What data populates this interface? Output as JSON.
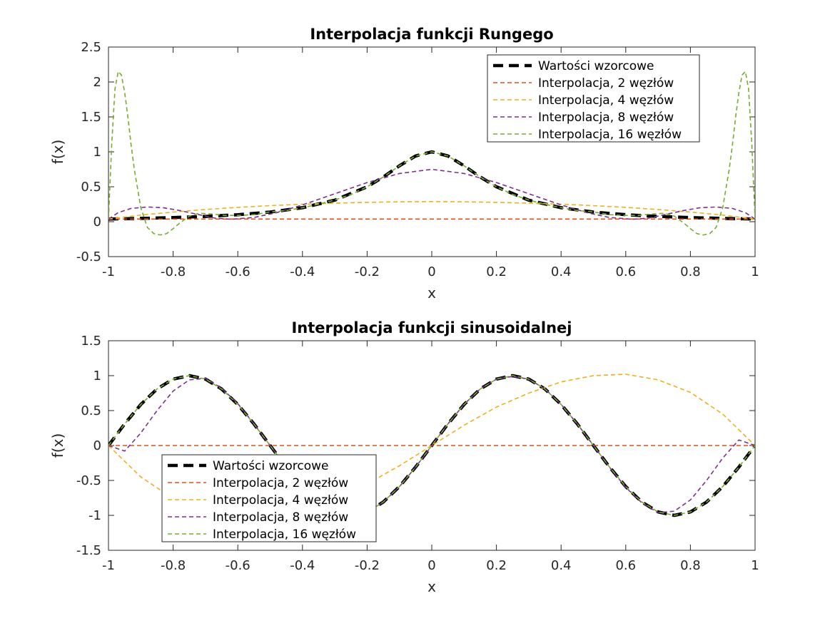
{
  "colors": {
    "reference": "#000000",
    "n2": "#D95319",
    "n4": "#EDB120",
    "n8": "#7E2F8E",
    "n16": "#77AC30",
    "axes": "#262626",
    "background": "#ffffff"
  },
  "chart_data": [
    {
      "type": "line",
      "title": "Interpolacja funkcji Rungego",
      "xlabel": "x",
      "ylabel": "f(x)",
      "xlim": [
        -1,
        1
      ],
      "ylim": [
        -0.5,
        2.5
      ],
      "xticks": [
        -1,
        -0.8,
        -0.6,
        -0.4,
        -0.2,
        0,
        0.2,
        0.4,
        0.6,
        0.8,
        1
      ],
      "xtick_labels": [
        "-1",
        "-0.8",
        "-0.6",
        "-0.4",
        "-0.2",
        "0",
        "0.2",
        "0.4",
        "0.6",
        "0.8",
        "1"
      ],
      "yticks": [
        -0.5,
        0,
        0.5,
        1,
        1.5,
        2,
        2.5
      ],
      "ytick_labels": [
        "-0.5",
        "0",
        "0.5",
        "1",
        "1.5",
        "2",
        "2.5"
      ],
      "grid": false,
      "legend_position": "top-right",
      "series": [
        {
          "name": "Wartości wzorcowe",
          "style": "reference",
          "x": [
            -1,
            -0.9,
            -0.8,
            -0.7,
            -0.6,
            -0.5,
            -0.4,
            -0.3,
            -0.2,
            -0.15,
            -0.1,
            -0.05,
            0,
            0.05,
            0.1,
            0.15,
            0.2,
            0.3,
            0.4,
            0.5,
            0.6,
            0.7,
            0.8,
            0.9,
            1
          ],
          "y": [
            0.038,
            0.047,
            0.059,
            0.075,
            0.1,
            0.138,
            0.2,
            0.308,
            0.5,
            0.64,
            0.8,
            0.941,
            1,
            0.941,
            0.8,
            0.64,
            0.5,
            0.308,
            0.2,
            0.138,
            0.1,
            0.075,
            0.059,
            0.047,
            0.038
          ]
        },
        {
          "name": "Interpolacja, 2 węzłów",
          "style": "n2",
          "x": [
            -1,
            1
          ],
          "y": [
            0.038,
            0.038
          ]
        },
        {
          "name": "Interpolacja, 4 węzłów",
          "style": "n4",
          "x": [
            -1,
            -0.9,
            -0.8,
            -0.7,
            -0.6,
            -0.5,
            -0.4,
            -0.3,
            -0.2,
            -0.1,
            0,
            0.1,
            0.2,
            0.3,
            0.4,
            0.5,
            0.6,
            0.7,
            0.8,
            0.9,
            1
          ],
          "y": [
            0.038,
            0.095,
            0.138,
            0.175,
            0.205,
            0.23,
            0.25,
            0.265,
            0.277,
            0.285,
            0.288,
            0.285,
            0.277,
            0.265,
            0.25,
            0.23,
            0.205,
            0.175,
            0.138,
            0.095,
            0.038
          ]
        },
        {
          "name": "Interpolacja, 8 węzłów",
          "style": "n8",
          "x": [
            -1,
            -0.97,
            -0.93,
            -0.88,
            -0.83,
            -0.78,
            -0.72,
            -0.67,
            -0.62,
            -0.55,
            -0.48,
            -0.4,
            -0.3,
            -0.2,
            -0.1,
            0,
            0.1,
            0.2,
            0.3,
            0.4,
            0.48,
            0.55,
            0.62,
            0.67,
            0.72,
            0.78,
            0.83,
            0.88,
            0.93,
            0.97,
            1
          ],
          "y": [
            0.038,
            0.13,
            0.19,
            0.21,
            0.2,
            0.16,
            0.1,
            0.05,
            0.035,
            0.06,
            0.13,
            0.24,
            0.4,
            0.56,
            0.69,
            0.75,
            0.69,
            0.56,
            0.4,
            0.24,
            0.13,
            0.06,
            0.035,
            0.05,
            0.1,
            0.16,
            0.2,
            0.21,
            0.19,
            0.13,
            0.038
          ]
        },
        {
          "name": "Interpolacja, 16 węzłów",
          "style": "n16",
          "x": [
            -1,
            -0.99,
            -0.98,
            -0.97,
            -0.96,
            -0.95,
            -0.94,
            -0.93,
            -0.92,
            -0.9,
            -0.88,
            -0.86,
            -0.84,
            -0.82,
            -0.8,
            -0.78,
            -0.75,
            -0.72,
            -0.68,
            -0.64,
            -0.6,
            -0.55,
            -0.5,
            -0.45,
            -0.4,
            -0.35,
            -0.3,
            -0.25,
            -0.2,
            -0.15,
            -0.1,
            -0.05,
            0,
            0.05,
            0.1,
            0.15,
            0.2,
            0.25,
            0.3,
            0.35,
            0.4,
            0.45,
            0.5,
            0.55,
            0.6,
            0.64,
            0.68,
            0.72,
            0.75,
            0.78,
            0.8,
            0.82,
            0.84,
            0.86,
            0.88,
            0.9,
            0.92,
            0.93,
            0.94,
            0.95,
            0.96,
            0.97,
            0.98,
            0.99,
            1
          ],
          "y": [
            0.038,
            1.1,
            1.9,
            2.15,
            2.1,
            1.85,
            1.5,
            1.1,
            0.75,
            0.2,
            -0.08,
            -0.17,
            -0.19,
            -0.17,
            -0.1,
            -0.02,
            0.08,
            0.12,
            0.11,
            0.09,
            0.09,
            0.1,
            0.14,
            0.16,
            0.2,
            0.25,
            0.31,
            0.39,
            0.5,
            0.64,
            0.8,
            0.94,
            1,
            0.94,
            0.8,
            0.64,
            0.5,
            0.39,
            0.31,
            0.25,
            0.2,
            0.16,
            0.14,
            0.1,
            0.09,
            0.09,
            0.11,
            0.12,
            0.08,
            -0.02,
            -0.1,
            -0.17,
            -0.19,
            -0.17,
            -0.08,
            0.2,
            0.75,
            1.1,
            1.5,
            1.85,
            2.1,
            2.15,
            1.9,
            1.1,
            0.038
          ]
        }
      ]
    },
    {
      "type": "line",
      "title": "Interpolacja funkcji sinusoidalnej",
      "xlabel": "x",
      "ylabel": "f(x)",
      "xlim": [
        -1,
        1
      ],
      "ylim": [
        -1.5,
        1.5
      ],
      "xticks": [
        -1,
        -0.8,
        -0.6,
        -0.4,
        -0.2,
        0,
        0.2,
        0.4,
        0.6,
        0.8,
        1
      ],
      "xtick_labels": [
        "-1",
        "-0.8",
        "-0.6",
        "-0.4",
        "-0.2",
        "0",
        "0.2",
        "0.4",
        "0.6",
        "0.8",
        "1"
      ],
      "yticks": [
        -1.5,
        -1,
        -0.5,
        0,
        0.5,
        1,
        1.5
      ],
      "ytick_labels": [
        "-1.5",
        "-1",
        "-0.5",
        "0",
        "0.5",
        "1",
        "1.5"
      ],
      "grid": false,
      "legend_position": "bottom-left",
      "series": [
        {
          "name": "Wartości wzorcowe",
          "style": "reference",
          "x": [
            -1,
            -0.95,
            -0.9,
            -0.85,
            -0.8,
            -0.75,
            -0.7,
            -0.65,
            -0.6,
            -0.55,
            -0.5,
            -0.45,
            -0.4,
            -0.35,
            -0.3,
            -0.25,
            -0.2,
            -0.15,
            -0.1,
            -0.05,
            0,
            0.05,
            0.1,
            0.15,
            0.2,
            0.25,
            0.3,
            0.35,
            0.4,
            0.45,
            0.5,
            0.55,
            0.6,
            0.65,
            0.7,
            0.75,
            0.8,
            0.85,
            0.9,
            0.95,
            1
          ],
          "y": [
            0,
            0.309,
            0.588,
            0.809,
            0.951,
            1,
            0.951,
            0.809,
            0.588,
            0.309,
            0,
            -0.309,
            -0.588,
            -0.809,
            -0.951,
            -1,
            -0.951,
            -0.809,
            -0.588,
            -0.309,
            0,
            0.309,
            0.588,
            0.809,
            0.951,
            1,
            0.951,
            0.809,
            0.588,
            0.309,
            0,
            -0.309,
            -0.588,
            -0.809,
            -0.951,
            -1,
            -0.951,
            -0.809,
            -0.588,
            -0.309,
            0
          ]
        },
        {
          "name": "Interpolacja, 2 węzłów",
          "style": "n2",
          "x": [
            -1,
            1
          ],
          "y": [
            0,
            0
          ]
        },
        {
          "name": "Interpolacja, 4 węzłów",
          "style": "n4",
          "x": [
            -1,
            -0.9,
            -0.8,
            -0.7,
            -0.6,
            -0.5,
            -0.4,
            -0.3,
            -0.2,
            -0.1,
            0,
            0.1,
            0.2,
            0.3,
            0.4,
            0.5,
            0.6,
            0.7,
            0.8,
            0.9,
            1
          ],
          "y": [
            0,
            -0.45,
            -0.76,
            -0.94,
            -1.02,
            -1.0,
            -0.91,
            -0.75,
            -0.55,
            -0.29,
            0,
            0.29,
            0.55,
            0.75,
            0.91,
            1.0,
            1.02,
            0.94,
            0.76,
            0.45,
            0
          ]
        },
        {
          "name": "Interpolacja, 8 węzłów",
          "style": "n8",
          "x": [
            -1,
            -0.95,
            -0.9,
            -0.85,
            -0.8,
            -0.75,
            -0.7,
            -0.65,
            -0.6,
            -0.55,
            -0.5,
            -0.45,
            -0.4,
            -0.35,
            -0.3,
            -0.25,
            -0.2,
            -0.15,
            -0.1,
            -0.05,
            0,
            0.05,
            0.1,
            0.15,
            0.2,
            0.25,
            0.3,
            0.35,
            0.4,
            0.45,
            0.5,
            0.55,
            0.6,
            0.65,
            0.7,
            0.75,
            0.8,
            0.85,
            0.9,
            0.95,
            1
          ],
          "y": [
            0,
            -0.08,
            0.18,
            0.5,
            0.78,
            0.94,
            0.96,
            0.82,
            0.6,
            0.31,
            0,
            -0.31,
            -0.59,
            -0.81,
            -0.95,
            -0.99,
            -0.95,
            -0.81,
            -0.59,
            -0.31,
            0,
            0.31,
            0.59,
            0.81,
            0.95,
            0.99,
            0.95,
            0.81,
            0.59,
            0.31,
            0,
            -0.31,
            -0.6,
            -0.82,
            -0.96,
            -0.94,
            -0.78,
            -0.5,
            -0.18,
            0.08,
            0
          ]
        },
        {
          "name": "Interpolacja, 16 węzłów",
          "style": "n16",
          "x": [
            -1,
            -0.95,
            -0.9,
            -0.85,
            -0.8,
            -0.75,
            -0.7,
            -0.65,
            -0.6,
            -0.55,
            -0.5,
            -0.45,
            -0.4,
            -0.35,
            -0.3,
            -0.25,
            -0.2,
            -0.15,
            -0.1,
            -0.05,
            0,
            0.05,
            0.1,
            0.15,
            0.2,
            0.25,
            0.3,
            0.35,
            0.4,
            0.45,
            0.5,
            0.55,
            0.6,
            0.65,
            0.7,
            0.75,
            0.8,
            0.85,
            0.9,
            0.95,
            1
          ],
          "y": [
            0,
            0.309,
            0.588,
            0.809,
            0.951,
            1,
            0.951,
            0.809,
            0.588,
            0.309,
            0,
            -0.309,
            -0.588,
            -0.809,
            -0.951,
            -1,
            -0.951,
            -0.809,
            -0.588,
            -0.309,
            0,
            0.309,
            0.588,
            0.809,
            0.951,
            1,
            0.951,
            0.809,
            0.588,
            0.309,
            0,
            -0.309,
            -0.588,
            -0.809,
            -0.951,
            -1,
            -0.951,
            -0.809,
            -0.588,
            -0.309,
            0
          ]
        }
      ]
    }
  ]
}
